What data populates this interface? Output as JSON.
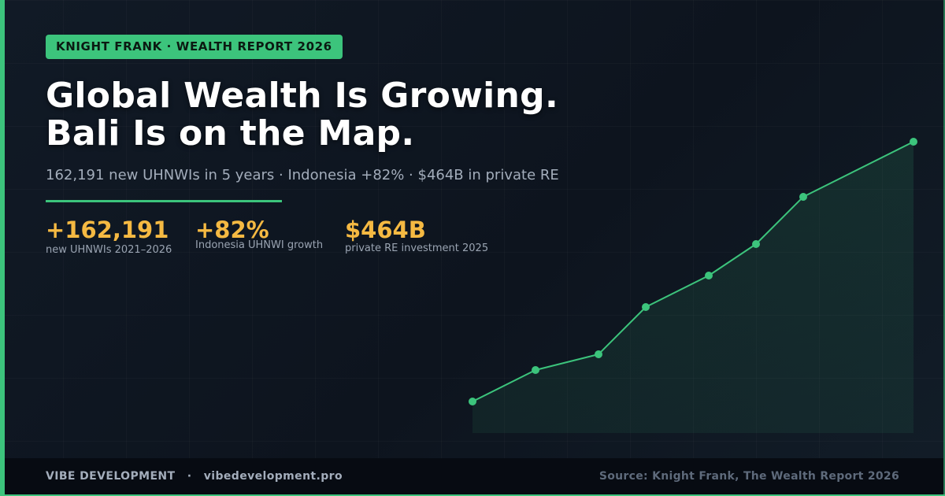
{
  "badge": "KNIGHT FRANK · WEALTH REPORT 2026",
  "headline": {
    "line1": "Global Wealth Is Growing.",
    "line2": "Bali Is on the Map."
  },
  "subtitle": "162,191 new UHNWIs in 5 years · Indonesia +82% · $464B in private RE",
  "stats": [
    {
      "value": "+162,191",
      "label": "new UHNWIs 2021–2026"
    },
    {
      "value": "+82%",
      "label": "Indonesia UHNWI growth"
    },
    {
      "value": "$464B",
      "label": "private RE investment 2025"
    }
  ],
  "chart_data": {
    "type": "area",
    "points": [
      0.0,
      0.1,
      0.15,
      0.3,
      0.4,
      0.5,
      0.65,
      0.825
    ],
    "color": "#3cc47c"
  },
  "footer": {
    "brand": "VIBE DEVELOPMENT",
    "separator": "·",
    "url": "vibedevelopment.pro",
    "source": "Source: Knight Frank, The Wealth Report 2026"
  },
  "colors": {
    "accent": "#3cc47c",
    "highlight": "#f5b942",
    "background": "#0e1520"
  }
}
